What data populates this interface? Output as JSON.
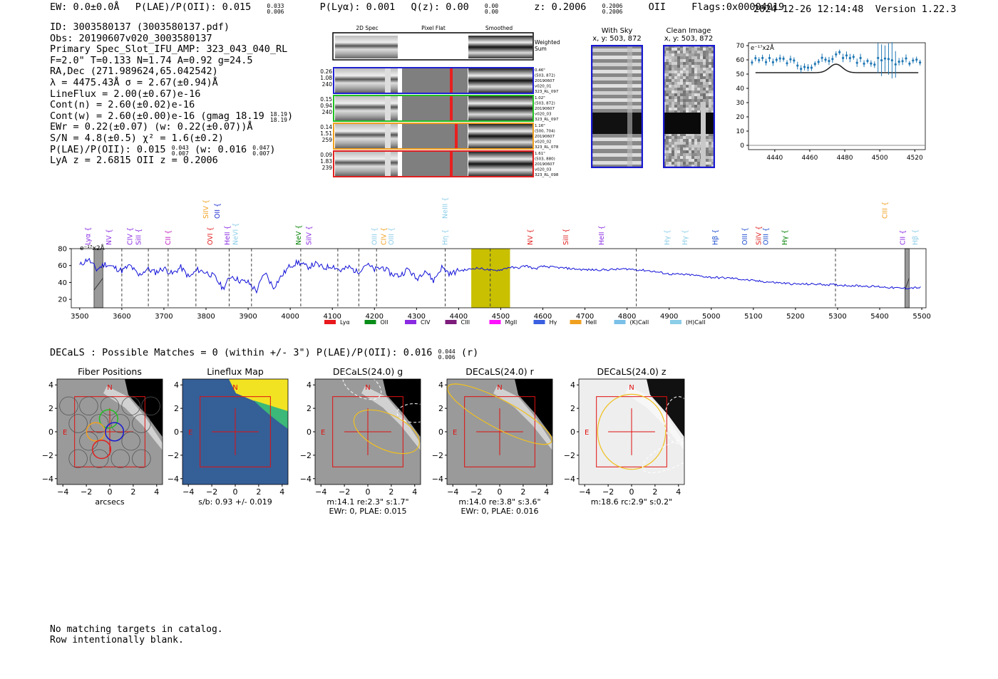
{
  "header": {
    "ew": "EW: 0.0±0.0Å",
    "plae_label": "P(LAE)/P(OII): 0.015",
    "plae_sup": "0.033",
    "plae_sub": "0.006",
    "plya": "P(Lyα): 0.001",
    "qz_label": "Q(z): 0.00",
    "qz_sup": "0.00",
    "qz_sub": "0.00",
    "z_label": "z: 0.2006",
    "z_sup": "0.2006",
    "z_sub": "0.2006",
    "z_type": "OII",
    "flags": "Flags:0x00004019",
    "timestamp": "2024-12-26 12:14:48",
    "version": "Version 1.22.3"
  },
  "info": {
    "id": "ID: 3003580137 (3003580137.pdf)",
    "obs": "Obs: 20190607v020_3003580137",
    "slot": "Primary Spec_Slot_IFU_AMP: 323_043_040_RL",
    "params": "F=2.0\"  T=0.133  N=1.74  A=0.92  g=24.5",
    "radec": "RA,Dec (271.989624,65.042542)",
    "lambda": "λ = 4475.43Å  σ = 2.67(±0.94)Å",
    "lineflux": "LineFlux = 2.00(±0.67)e-16",
    "contn": "Cont(n) = 2.60(±0.02)e-16",
    "contw": "Cont(w) = 2.60(±0.00)e-16 (gmag 18.19",
    "contw_sup": "18.19",
    "contw_sub": "18.19",
    "ewr": "EWr = 0.22(±0.07) (w: 0.22(±0.07))Å",
    "sn": "S/N = 4.8(±0.5)  χ² = 1.6(±0.2)",
    "plae": "P(LAE)/P(OII): 0.015",
    "plae_sup": "0.043",
    "plae_sub": "0.007",
    "plae_w": "(w: 0.016",
    "plae_w_sup": "0.047",
    "plae_w_sub": "0.007",
    "lyaz": "LyA z = 2.6815  OII z = 0.2006"
  },
  "cutouts": {
    "col_titles": [
      "2D Spec",
      "Pixel Flat",
      "Smoothed"
    ],
    "weighted_label": "Weighted",
    "sum_label": "Sum",
    "rows": [
      {
        "left": [
          "0.26",
          "1.08",
          "240"
        ],
        "right": [
          "0.46\"",
          "(503, 872)",
          "20190607",
          "v020_01",
          "323_RL_097"
        ],
        "color": "#2020d0"
      },
      {
        "left": [
          "0.15",
          "0.94",
          "240"
        ],
        "right": [
          "1.02\"",
          "(503, 872)",
          "20190607",
          "v020_03",
          "323_RL_097"
        ],
        "color": "#22c022"
      },
      {
        "left": [
          "0.14",
          "1.51",
          "259"
        ],
        "right": [
          "1.16\"",
          "(500, 704)",
          "20190607",
          "v020_02",
          "323_RL_078"
        ],
        "color": "#f0a020"
      },
      {
        "left": [
          "0.09",
          "1.83",
          "239"
        ],
        "right": [
          "1.61\"",
          "(503, 880)",
          "20190607",
          "v020_03",
          "323_RL_098"
        ],
        "color": "#e02020"
      }
    ],
    "with_sky_title": "With Sky",
    "with_sky_coords": "x, y: 503, 872",
    "clean_title": "Clean Image",
    "clean_coords": "x, y: 503, 872"
  },
  "zoom_chart": {
    "type": "scatter",
    "unit_label": "e⁻¹⁷x2Å",
    "x_ticks": [
      "4440",
      "4460",
      "4480",
      "4500",
      "4520"
    ],
    "y_ticks": [
      "0",
      "10",
      "20",
      "30",
      "40",
      "50",
      "60",
      "70"
    ],
    "xlim": [
      4425,
      4526
    ],
    "ylim": [
      -3,
      72
    ]
  },
  "chart_data": {
    "type": "line",
    "title": "",
    "unit_label": "e⁻¹⁷x2Å",
    "xlabel": "",
    "ylabel": "",
    "xlim": [
      3480,
      5510
    ],
    "ylim": [
      10,
      80
    ],
    "x_ticks": [
      "3500",
      "3600",
      "3700",
      "3800",
      "3900",
      "4000",
      "4100",
      "4200",
      "4300",
      "4400",
      "4500",
      "4600",
      "4700",
      "4800",
      "4900",
      "5000",
      "5100",
      "5200",
      "5300",
      "5400",
      "5500"
    ],
    "y_ticks": [
      "20",
      "40",
      "60",
      "80"
    ],
    "highlight_band": [
      4430,
      4522
    ],
    "line_center": 4475,
    "dashed_lines": [
      3600,
      3663,
      3710,
      3776,
      3855,
      3908,
      4025,
      4113,
      4163,
      4205,
      4368,
      4475,
      4822,
      5295
    ],
    "hatched_bands": [
      [
        3534,
        3555
      ],
      [
        5460,
        5470
      ]
    ],
    "series": [
      {
        "name": "flux",
        "x": [
          3500,
          3520,
          3540,
          3560,
          3580,
          3600,
          3620,
          3640,
          3660,
          3680,
          3700,
          3720,
          3740,
          3760,
          3780,
          3800,
          3820,
          3840,
          3860,
          3880,
          3900,
          3920,
          3940,
          3960,
          3980,
          4000,
          4020,
          4040,
          4060,
          4080,
          4100,
          4120,
          4140,
          4160,
          4180,
          4200,
          4220,
          4240,
          4260,
          4280,
          4300,
          4320,
          4340,
          4360,
          4380,
          4400,
          4420,
          4440,
          4460,
          4480,
          4500,
          4520,
          4540,
          4560,
          4580,
          4600,
          4650,
          4700,
          4750,
          4800,
          4850,
          4900,
          4950,
          5000,
          5050,
          5100,
          5150,
          5200,
          5250,
          5300,
          5350,
          5400,
          5450,
          5500
        ],
        "values": [
          60,
          68,
          55,
          62,
          58,
          54,
          60,
          48,
          56,
          52,
          57,
          50,
          58,
          46,
          55,
          52,
          47,
          33,
          48,
          42,
          40,
          30,
          52,
          34,
          48,
          60,
          64,
          58,
          62,
          57,
          60,
          54,
          58,
          52,
          62,
          55,
          58,
          50,
          48,
          56,
          44,
          55,
          42,
          58,
          50,
          54,
          55,
          57,
          56,
          54,
          55,
          58,
          57,
          60,
          56,
          59,
          57,
          55,
          55,
          56,
          54,
          50,
          49,
          46,
          45,
          42,
          40,
          38,
          38,
          37,
          36,
          35,
          33,
          34
        ]
      }
    ],
    "line_labels_top": [
      {
        "text": "SiIV",
        "x": 3800,
        "color": "#f0a020"
      },
      {
        "text": "OII",
        "x": 3827,
        "color": "#2030d0"
      },
      {
        "text": "NeIII",
        "x": 4368,
        "color": "#8ccde8"
      },
      {
        "text": "CIII",
        "x": 5413,
        "color": "#f0a020"
      }
    ],
    "line_labels": [
      {
        "text": "Lyα",
        "x": 3520,
        "color": "#8a2be2"
      },
      {
        "text": "NV",
        "x": 3570,
        "color": "#8a2be2"
      },
      {
        "text": "CIV",
        "x": 3620,
        "color": "#8a2be2"
      },
      {
        "text": "SiII",
        "x": 3640,
        "color": "#8a2be2"
      },
      {
        "text": "CII",
        "x": 3710,
        "color": "#c020c0"
      },
      {
        "text": "OVI",
        "x": 3810,
        "color": "#e02020"
      },
      {
        "text": "HeII",
        "x": 3851,
        "color": "#8a2be2"
      },
      {
        "text": "NeVI",
        "x": 3870,
        "color": "#8ccde8"
      },
      {
        "text": "NeV",
        "x": 4020,
        "color": "#008000"
      },
      {
        "text": "SiIV",
        "x": 4045,
        "color": "#8a2be2"
      },
      {
        "text": "OIII",
        "x": 4200,
        "color": "#8ccde8"
      },
      {
        "text": "CIV",
        "x": 4222,
        "color": "#f0a020"
      },
      {
        "text": "OIII",
        "x": 4240,
        "color": "#8ccde8"
      },
      {
        "text": "Hη",
        "x": 4368,
        "color": "#8ccde8"
      },
      {
        "text": "NV",
        "x": 4570,
        "color": "#e02020"
      },
      {
        "text": "SiII",
        "x": 4655,
        "color": "#e02020"
      },
      {
        "text": "HeII",
        "x": 4740,
        "color": "#8a2be2"
      },
      {
        "text": "Hγ",
        "x": 4895,
        "color": "#8ccde8"
      },
      {
        "text": "Hγ",
        "x": 4938,
        "color": "#8ccde8"
      },
      {
        "text": "Hβ",
        "x": 5010,
        "color": "#2050d0"
      },
      {
        "text": "OIII",
        "x": 5080,
        "color": "#2050d0"
      },
      {
        "text": "SiIV",
        "x": 5113,
        "color": "#e02020"
      },
      {
        "text": "OIII",
        "x": 5130,
        "color": "#2050d0"
      },
      {
        "text": "Hγ",
        "x": 5175,
        "color": "#008000"
      },
      {
        "text": "CII",
        "x": 5455,
        "color": "#8a2be2"
      },
      {
        "text": "Hβ",
        "x": 5485,
        "color": "#8ccde8"
      }
    ],
    "legend": [
      {
        "label": "Lyα",
        "color": "#e8181c"
      },
      {
        "label": "OII",
        "color": "#0a8c18"
      },
      {
        "label": "CIV",
        "color": "#8a2be2"
      },
      {
        "label": "CIII",
        "color": "#7d1c7a"
      },
      {
        "label": "MgII",
        "color": "#ff10ff"
      },
      {
        "label": "Hγ",
        "color": "#3a60e0"
      },
      {
        "label": "HeII",
        "color": "#f0a020"
      },
      {
        "label": "(K)CaII",
        "color": "#7ac0e8"
      },
      {
        "label": "(H)CaII",
        "color": "#8ccde8"
      }
    ]
  },
  "decals": {
    "title": "DECaLS : Possible Matches = 0 (within +/- 3\")  P(LAE)/P(OII): 0.016",
    "plae_sup": "0.044",
    "plae_sub": "0.006",
    "band": "(r)",
    "tick_labels": [
      "−4",
      "−2",
      "0",
      "2",
      "4"
    ],
    "north": "N",
    "east": "E",
    "panels": [
      {
        "title": "Fiber Positions",
        "caption1": "arcsecs",
        "caption2": ""
      },
      {
        "title": "Lineflux Map",
        "caption1": "s/b: 0.93 +/- 0.019",
        "caption2": ""
      },
      {
        "title": "DECaLS(24.0) g",
        "caption1": "m:14.1  re:2.3\"  s:1.7\"",
        "caption2": "EWr: 0, PLAE: 0.015"
      },
      {
        "title": "DECaLS(24.0) r",
        "caption1": "m:14.0  re:3.8\"  s:3.6\"",
        "caption2": "EWr: 0, PLAE: 0.016"
      },
      {
        "title": "DECaLS(24.0) z",
        "caption1": "m:18.6 rc:2.9\"  s:0.2\"",
        "caption2": ""
      }
    ]
  },
  "footer": {
    "line1": "No matching targets in catalog.",
    "line2": "Row intentionally blank."
  }
}
